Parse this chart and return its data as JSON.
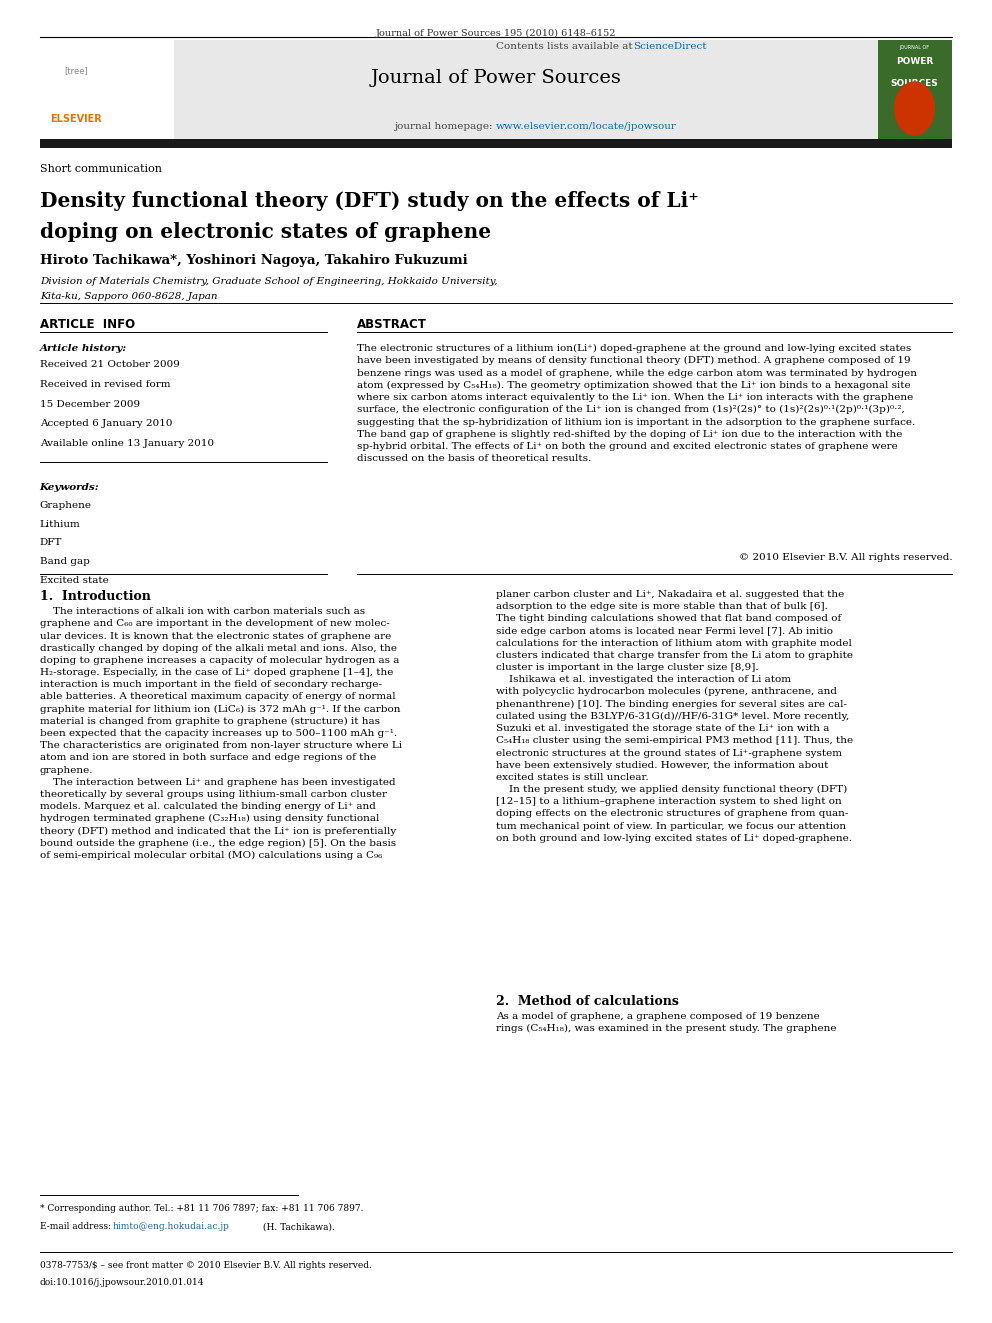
{
  "page_width": 9.92,
  "page_height": 13.23,
  "background_color": "#ffffff",
  "journal_ref": "Journal of Power Sources 195 (2010) 6148–6152",
  "contents_line": "Contents lists available at ",
  "sciencedirect_text": "ScienceDirect",
  "sciencedirect_color": "#1a6496",
  "journal_name": "Journal of Power Sources",
  "journal_homepage_prefix": "journal homepage: ",
  "journal_homepage_url": "www.elsevier.com/locate/jpowsour",
  "homepage_color": "#1a6496",
  "header_bg": "#e8e8e8",
  "black_bar_color": "#1a1a1a",
  "article_type": "Short communication",
  "title_line1": "Density functional theory (DFT) study on the effects of Li",
  "title_superscript": "+",
  "title_line2": "doping on electronic states of graphene",
  "authors": "Hiroto Tachikawa*, Yoshinori Nagoya, Takahiro Fukuzumi",
  "affiliation1": "Division of Materials Chemistry, Graduate School of Engineering, Hokkaido University,",
  "affiliation2": "Kita-ku, Sapporo 060-8628, Japan",
  "article_info_header": "ARTICLE  INFO",
  "abstract_header": "ABSTRACT",
  "article_history_label": "Article history:",
  "history_lines": [
    "Received 21 October 2009",
    "Received in revised form",
    "15 December 2009",
    "Accepted 6 January 2010",
    "Available online 13 January 2010"
  ],
  "keywords_label": "Keywords:",
  "keywords": [
    "Graphene",
    "Lithium",
    "DFT",
    "Band gap",
    "Excited state"
  ],
  "copyright": "© 2010 Elsevier B.V. All rights reserved.",
  "intro_header": "1.  Introduction",
  "method_header": "2.  Method of calculations",
  "method_text": "As a model of graphene, a graphene composed of 19 benzene\nrings (C₅₄H₁₈), was examined in the present study. The graphene",
  "footnote_line1": "* Corresponding author. Tel.: +81 11 706 7897; fax: +81 11 706 7897.",
  "footnote_line2_pre": "E-mail address: ",
  "footnote_email": "himto@eng.hokudai.ac.jp",
  "footnote_line2_post": " (H. Tachikawa).",
  "footer_line1": "0378-7753/$ – see front matter © 2010 Elsevier B.V. All rights reserved.",
  "footer_line2": "doi:10.1016/j.jpowsour.2010.01.014"
}
